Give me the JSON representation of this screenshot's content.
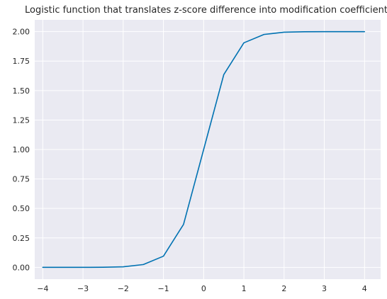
{
  "chart_data": {
    "type": "line",
    "title": "Logistic function that translates z-score difference into modification coefficient",
    "xlabel": "",
    "ylabel": "",
    "xlim": [
      -4.2,
      4.4
    ],
    "ylim": [
      -0.1,
      2.1
    ],
    "xticks": [
      -4,
      -3,
      -2,
      -1,
      0,
      1,
      2,
      3,
      4
    ],
    "xtick_labels": [
      "−4",
      "−3",
      "−2",
      "−1",
      "0",
      "1",
      "2",
      "3",
      "4"
    ],
    "yticks": [
      0,
      0.25,
      0.5,
      0.75,
      1,
      1.25,
      1.5,
      1.75,
      2
    ],
    "ytick_labels": [
      "0.00",
      "0.25",
      "0.50",
      "0.75",
      "1.00",
      "1.25",
      "1.50",
      "1.75",
      "2.00"
    ],
    "grid": true,
    "series": [
      {
        "color": "#0072b2",
        "x": [
          -4,
          -3.5,
          -3,
          -2.5,
          -2,
          -1.5,
          -1,
          -0.5,
          0,
          0.5,
          1,
          1.5,
          2,
          2.5,
          3,
          3.5,
          4
        ],
        "y": [
          0.0,
          0.0,
          0.0,
          0.001,
          0.005,
          0.024,
          0.095,
          0.365,
          1.0,
          1.635,
          1.905,
          1.976,
          1.995,
          1.999,
          2.0,
          2.0,
          2.0
        ]
      }
    ],
    "colors": {
      "plot_background": "#eaeaf2",
      "grid": "#ffffff",
      "text": "#262626"
    }
  }
}
